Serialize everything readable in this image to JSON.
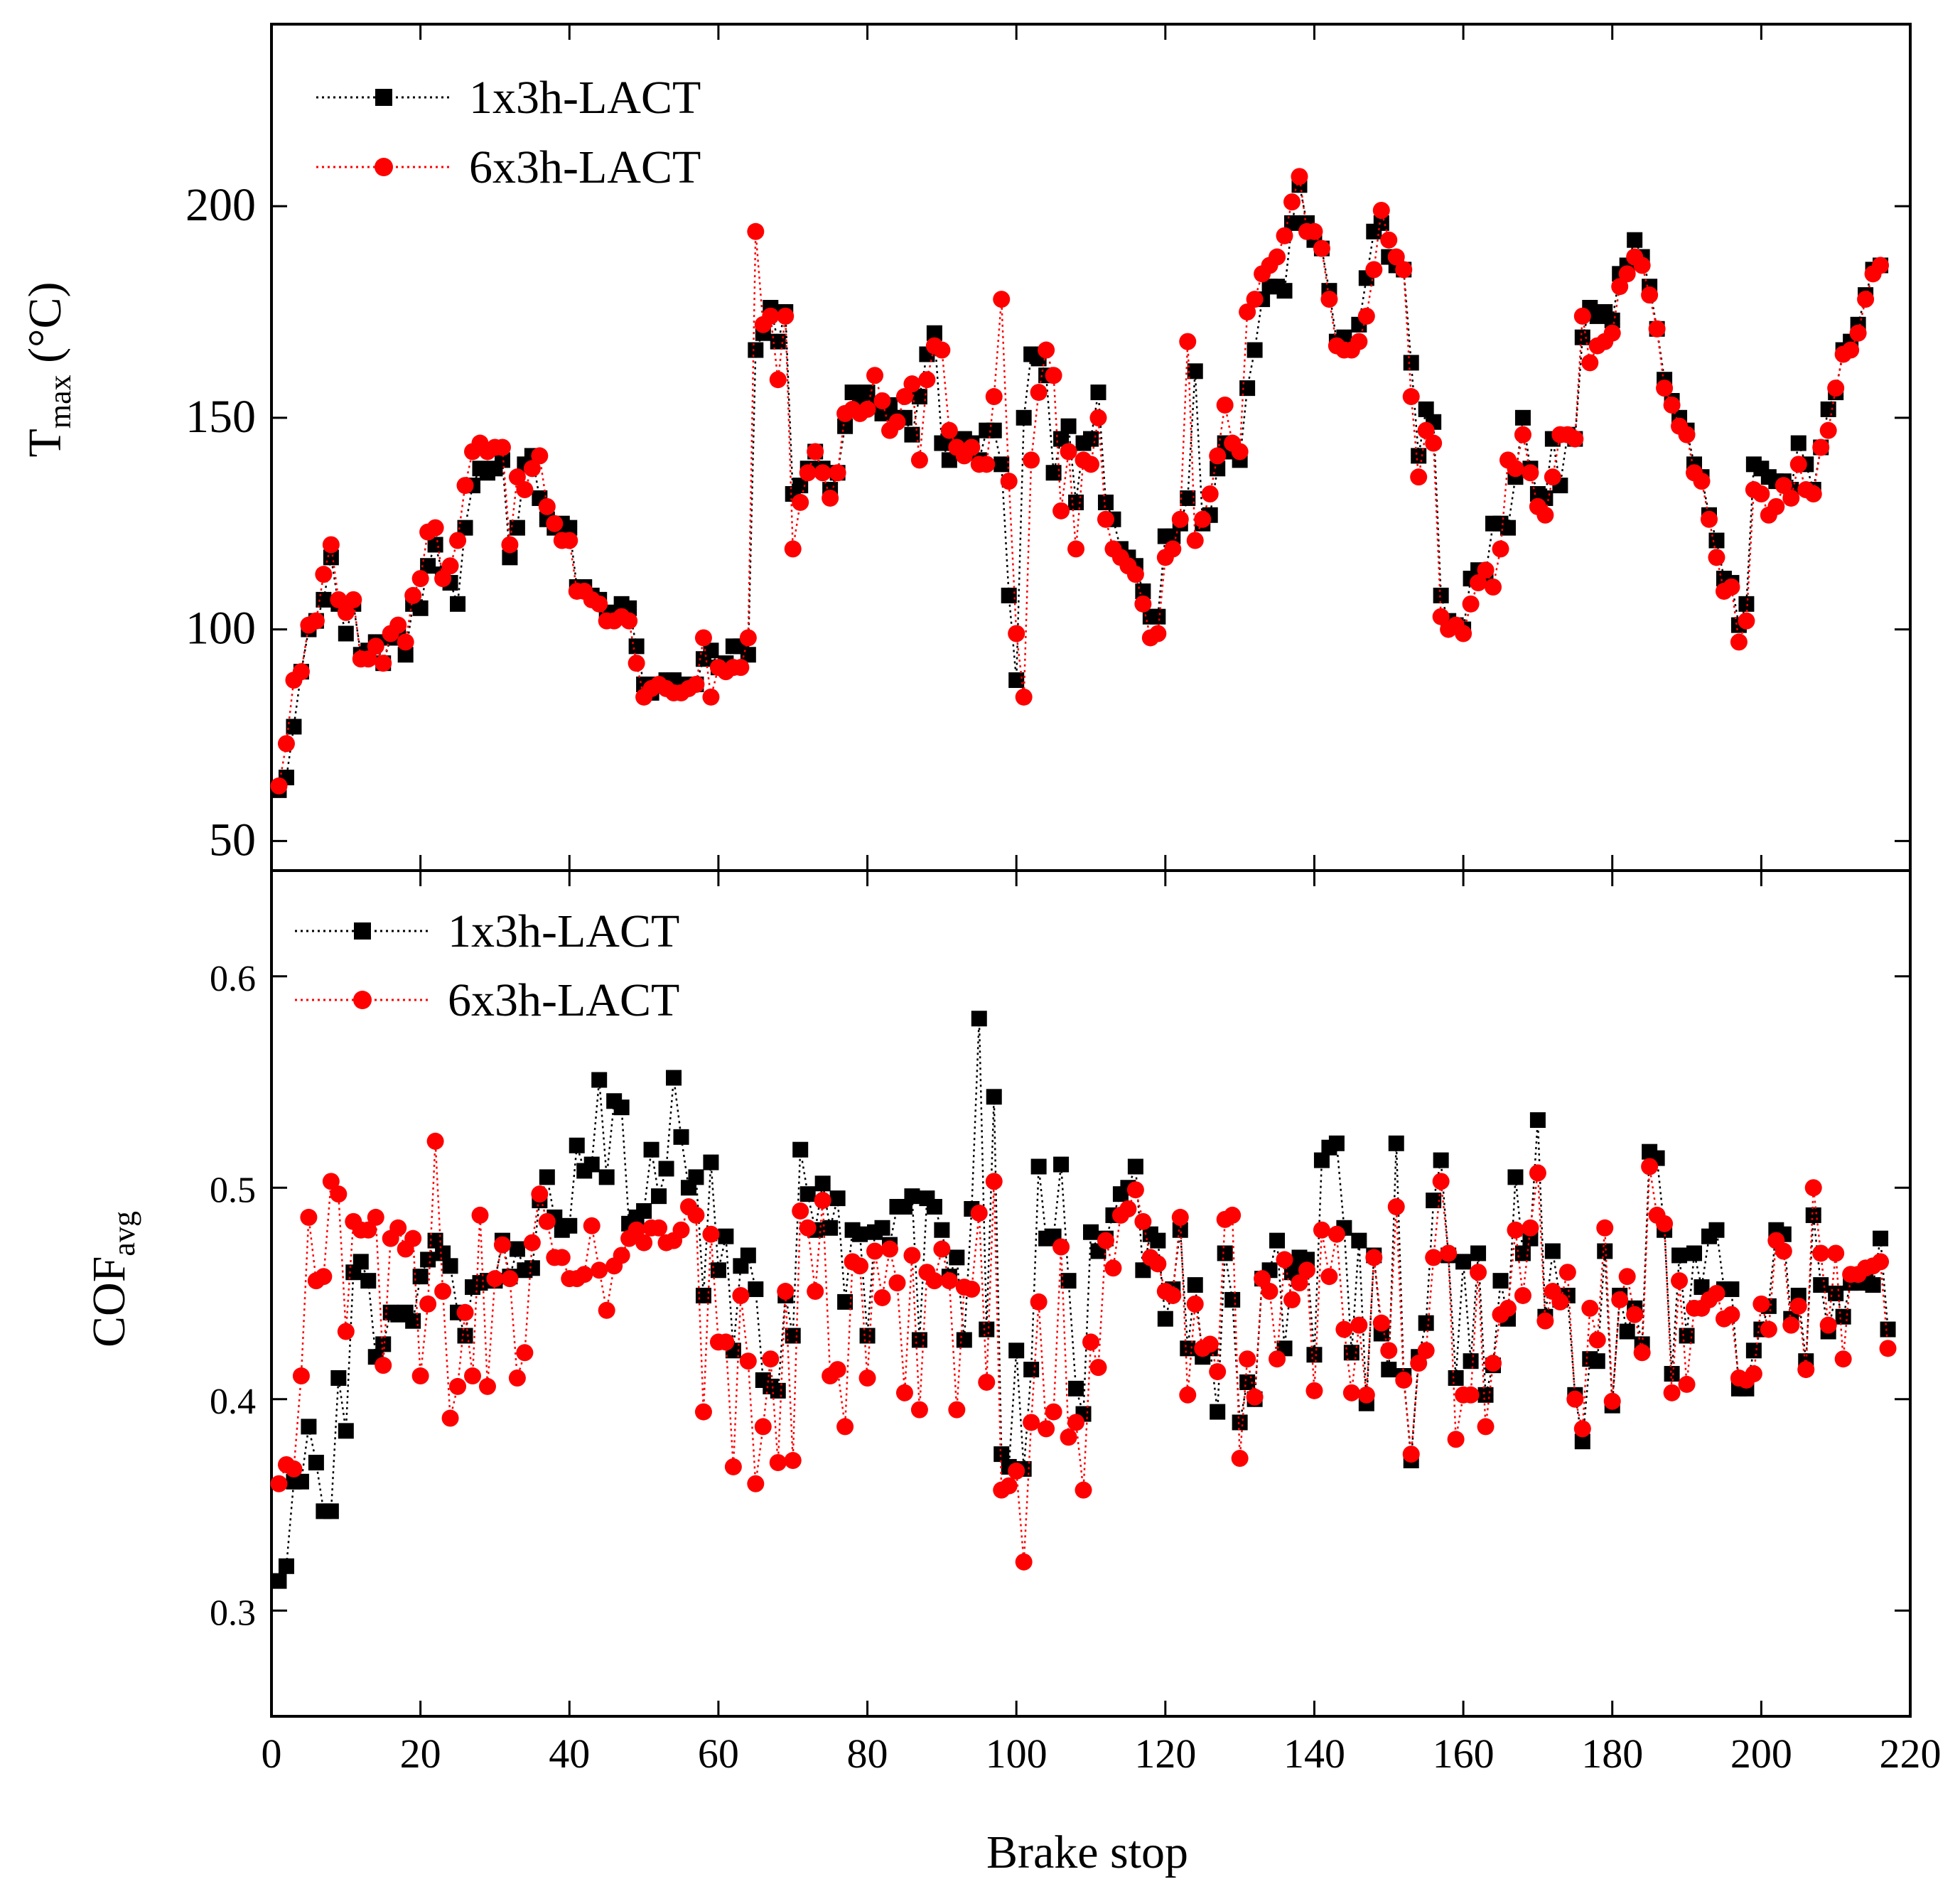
{
  "colors": {
    "series1": "#000000",
    "series2": "#ff0000"
  },
  "shared": {
    "xlabel": "Brake stop",
    "xlim": [
      0,
      220
    ],
    "xticks": [
      0,
      20,
      40,
      60,
      80,
      100,
      120,
      140,
      160,
      180,
      200,
      220
    ],
    "xtick_labels": [
      "0",
      "20",
      "40",
      "60",
      "80",
      "100",
      "120",
      "140",
      "160",
      "180",
      "200",
      "220"
    ]
  },
  "chart_data": [
    {
      "type": "line",
      "panel": "top",
      "title": "",
      "ylabel_main": "T",
      "ylabel_sub": "max",
      "ylabel_unit": " (°C)",
      "ylim": [
        43,
        243
      ],
      "yticks": [
        50,
        100,
        150,
        200
      ],
      "ytick_labels": [
        "50",
        "100",
        "150",
        "200"
      ],
      "grid": false,
      "legend": "top-left",
      "series": [
        {
          "name": "1x3h-LACT",
          "marker": "square",
          "color": "#000000",
          "values": [
            62,
            65,
            77,
            90,
            100,
            102,
            107,
            117,
            106,
            99,
            106,
            94,
            95,
            97,
            92,
            98,
            100,
            94,
            106,
            105,
            115,
            120,
            113,
            111,
            106,
            124,
            134,
            138,
            137,
            138,
            140,
            117,
            124,
            139,
            141,
            131,
            126,
            124,
            125,
            124,
            110,
            110,
            108,
            107,
            104,
            103,
            106,
            105,
            96,
            87,
            85,
            87,
            88,
            88,
            86,
            87,
            87,
            93,
            95,
            91,
            92,
            96,
            96,
            94,
            166,
            170,
            176,
            168,
            175,
            132,
            134,
            138,
            142,
            138,
            133,
            137,
            148,
            156,
            153,
            156,
            153,
            151,
            153,
            150,
            150,
            146,
            155,
            165,
            170,
            144,
            140,
            144,
            145,
            144,
            140,
            147,
            147,
            139,
            108,
            88,
            150,
            165,
            164,
            160,
            137,
            145,
            148,
            130,
            144,
            145,
            156,
            130,
            126,
            119,
            117,
            115,
            109,
            103,
            103,
            122,
            122,
            125,
            131,
            161,
            125,
            127,
            138,
            144,
            142,
            140,
            157,
            166,
            178,
            181,
            181,
            180,
            196,
            205,
            196,
            192,
            190,
            180,
            168,
            169,
            167,
            172,
            183,
            194,
            196,
            188,
            186,
            185,
            163,
            141,
            152,
            149,
            108,
            102,
            101,
            100,
            112,
            114,
            113,
            125,
            125,
            124,
            136,
            150,
            138,
            132,
            131,
            145,
            134,
            146,
            145,
            169,
            176,
            174,
            175,
            173,
            184,
            186,
            192,
            188,
            181,
            171,
            159,
            154,
            150,
            147,
            139,
            136,
            127,
            121,
            112,
            111,
            101,
            106,
            139,
            138,
            136,
            135,
            135,
            133,
            144,
            139,
            133,
            143,
            152,
            156,
            166,
            168,
            172,
            179,
            185,
            186
          ]
        },
        {
          "name": "6x3h-LACT",
          "marker": "circle",
          "color": "#ff0000",
          "values": [
            63,
            73,
            88,
            90,
            101,
            102,
            113,
            120,
            107,
            104,
            107,
            93,
            93,
            96,
            92,
            99,
            101,
            97,
            108,
            112,
            123,
            124,
            112,
            115,
            121,
            134,
            142,
            144,
            142,
            143,
            143,
            120,
            136,
            133,
            138,
            141,
            129,
            125,
            121,
            121,
            109,
            109,
            107,
            106,
            102,
            102,
            103,
            102,
            92,
            84,
            86,
            87,
            86,
            85,
            85,
            86,
            87,
            98,
            84,
            91,
            90,
            91,
            91,
            98,
            194,
            172,
            174,
            159,
            174,
            119,
            130,
            137,
            142,
            137,
            131,
            137,
            151,
            152,
            151,
            152,
            160,
            154,
            147,
            149,
            155,
            158,
            140,
            159,
            167,
            166,
            147,
            143,
            141,
            143,
            139,
            139,
            155,
            178,
            135,
            99,
            84,
            140,
            156,
            166,
            160,
            128,
            142,
            119,
            140,
            139,
            150,
            126,
            119,
            117,
            115,
            113,
            106,
            98,
            99,
            117,
            119,
            126,
            168,
            121,
            126,
            132,
            141,
            153,
            144,
            142,
            175,
            178,
            184,
            186,
            188,
            193,
            201,
            207,
            194,
            194,
            190,
            178,
            167,
            166,
            166,
            168,
            174,
            185,
            199,
            192,
            188,
            185,
            155,
            136,
            147,
            144,
            103,
            100,
            101,
            99,
            106,
            111,
            114,
            110,
            119,
            140,
            138,
            146,
            137,
            129,
            127,
            136,
            146,
            146,
            145,
            174,
            163,
            167,
            168,
            170,
            181,
            184,
            188,
            186,
            179,
            171,
            157,
            153,
            148,
            146,
            137,
            135,
            126,
            117,
            109,
            110,
            97,
            102,
            133,
            132,
            127,
            129,
            134,
            131,
            139,
            133,
            132,
            143,
            147,
            157,
            165,
            166,
            170,
            178,
            184,
            186
          ]
        }
      ]
    },
    {
      "type": "line",
      "panel": "bottom",
      "title": "",
      "ylabel_main": "COF",
      "ylabel_sub": "avg",
      "ylabel_unit": "",
      "ylim": [
        0.25,
        0.65
      ],
      "yticks": [
        0.3,
        0.4,
        0.5,
        0.6
      ],
      "ytick_labels": [
        "0.3",
        "0.4",
        "0.5",
        "0.6"
      ],
      "grid": false,
      "legend": "top-left",
      "series": [
        {
          "name": "1x3h-LACT",
          "marker": "square",
          "color": "#000000",
          "values": [
            0.314,
            0.321,
            0.361,
            0.361,
            0.387,
            0.37,
            0.347,
            0.347,
            0.41,
            0.385,
            0.46,
            0.465,
            0.456,
            0.42,
            0.426,
            0.441,
            0.44,
            0.441,
            0.437,
            0.458,
            0.466,
            0.475,
            0.469,
            0.463,
            0.441,
            0.43,
            0.453,
            0.455,
            0.456,
            0.456,
            0.475,
            0.458,
            0.471,
            0.461,
            0.462,
            0.494,
            0.505,
            0.486,
            0.48,
            0.482,
            0.52,
            0.508,
            0.511,
            0.551,
            0.505,
            0.541,
            0.538,
            0.483,
            0.486,
            0.489,
            0.518,
            0.496,
            0.509,
            0.552,
            0.524,
            0.5,
            0.505,
            0.449,
            0.512,
            0.461,
            0.477,
            0.423,
            0.463,
            0.468,
            0.452,
            0.409,
            0.406,
            0.404,
            0.449,
            0.43,
            0.518,
            0.497,
            0.48,
            0.502,
            0.481,
            0.495,
            0.446,
            0.48,
            0.478,
            0.43,
            0.479,
            0.481,
            0.473,
            0.491,
            0.491,
            0.496,
            0.428,
            0.495,
            0.491,
            0.48,
            0.458,
            0.467,
            0.428,
            0.49,
            0.58,
            0.433,
            0.543,
            0.374,
            0.368,
            0.423,
            0.367,
            0.414,
            0.51,
            0.476,
            0.477,
            0.511,
            0.456,
            0.405,
            0.393,
            0.479,
            0.47,
            0.476,
            0.487,
            0.497,
            0.5,
            0.51,
            0.461,
            0.478,
            0.475,
            0.438,
            0.452,
            0.48,
            0.424,
            0.454,
            0.42,
            0.424,
            0.394,
            0.469,
            0.447,
            0.389,
            0.408,
            0.4,
            0.457,
            0.461,
            0.475,
            0.424,
            0.46,
            0.467,
            0.466,
            0.421,
            0.513,
            0.519,
            0.521,
            0.481,
            0.422,
            0.475,
            0.398,
            0.468,
            0.431,
            0.414,
            0.521,
            0.411,
            0.371,
            0.42,
            0.436,
            0.494,
            0.513,
            0.468,
            0.41,
            0.465,
            0.418,
            0.469,
            0.402,
            0.416,
            0.456,
            0.438,
            0.505,
            0.469,
            0.476,
            0.532,
            0.439,
            0.47,
            0.447,
            0.449,
            0.402,
            0.38,
            0.419,
            0.418,
            0.47,
            0.397,
            0.449,
            0.432,
            0.443,
            0.426,
            0.517,
            0.514,
            0.48,
            0.412,
            0.468,
            0.43,
            0.469,
            0.453,
            0.477,
            0.48,
            0.452,
            0.452,
            0.405,
            0.405,
            0.423,
            0.433,
            0.444,
            0.48,
            0.478,
            0.438,
            0.449,
            0.418,
            0.487,
            0.454,
            0.432,
            0.45,
            0.439,
            0.455,
            0.455,
            0.46,
            0.454,
            0.476,
            0.433
          ]
        },
        {
          "name": "6x3h-LACT",
          "marker": "circle",
          "color": "#ff0000",
          "values": [
            0.36,
            0.369,
            0.367,
            0.411,
            0.486,
            0.456,
            0.458,
            0.503,
            0.497,
            0.432,
            0.484,
            0.48,
            0.48,
            0.486,
            0.416,
            0.476,
            0.481,
            0.471,
            0.476,
            0.411,
            0.445,
            0.522,
            0.451,
            0.391,
            0.406,
            0.441,
            0.411,
            0.487,
            0.406,
            0.457,
            0.473,
            0.457,
            0.41,
            0.422,
            0.474,
            0.497,
            0.484,
            0.467,
            0.467,
            0.457,
            0.457,
            0.459,
            0.482,
            0.461,
            0.442,
            0.463,
            0.468,
            0.476,
            0.48,
            0.474,
            0.481,
            0.481,
            0.474,
            0.475,
            0.48,
            0.491,
            0.487,
            0.394,
            0.478,
            0.427,
            0.427,
            0.368,
            0.449,
            0.418,
            0.36,
            0.387,
            0.419,
            0.37,
            0.451,
            0.371,
            0.489,
            0.481,
            0.451,
            0.494,
            0.411,
            0.414,
            0.387,
            0.465,
            0.463,
            0.41,
            0.47,
            0.448,
            0.471,
            0.455,
            0.403,
            0.468,
            0.395,
            0.46,
            0.456,
            0.471,
            0.456,
            0.395,
            0.453,
            0.452,
            0.488,
            0.408,
            0.503,
            0.357,
            0.359,
            0.366,
            0.323,
            0.389,
            0.446,
            0.386,
            0.394,
            0.472,
            0.382,
            0.389,
            0.357,
            0.427,
            0.415,
            0.475,
            0.462,
            0.487,
            0.49,
            0.499,
            0.484,
            0.467,
            0.464,
            0.451,
            0.449,
            0.486,
            0.402,
            0.445,
            0.424,
            0.426,
            0.413,
            0.485,
            0.487,
            0.372,
            0.419,
            0.401,
            0.457,
            0.451,
            0.419,
            0.466,
            0.447,
            0.455,
            0.461,
            0.404,
            0.48,
            0.458,
            0.478,
            0.433,
            0.403,
            0.435,
            0.402,
            0.467,
            0.436,
            0.423,
            0.491,
            0.409,
            0.374,
            0.417,
            0.423,
            0.467,
            0.503,
            0.469,
            0.381,
            0.402,
            0.402,
            0.46,
            0.387,
            0.417,
            0.44,
            0.443,
            0.48,
            0.449,
            0.481,
            0.507,
            0.437,
            0.451,
            0.446,
            0.46,
            0.4,
            0.386,
            0.443,
            0.428,
            0.481,
            0.399,
            0.447,
            0.458,
            0.44,
            0.422,
            0.51,
            0.487,
            0.483,
            0.403,
            0.456,
            0.407,
            0.443,
            0.443,
            0.447,
            0.45,
            0.438,
            0.44,
            0.41,
            0.409,
            0.412,
            0.445,
            0.433,
            0.475,
            0.47,
            0.435,
            0.444,
            0.414,
            0.5,
            0.469,
            0.435,
            0.469,
            0.419,
            0.459,
            0.459,
            0.462,
            0.463,
            0.465,
            0.424
          ]
        }
      ]
    }
  ]
}
